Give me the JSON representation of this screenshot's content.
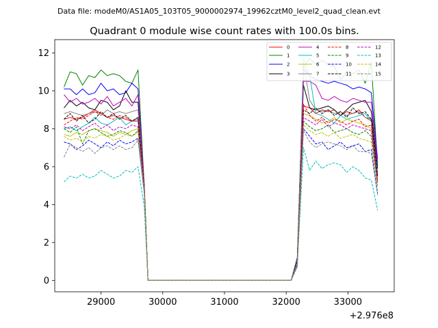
{
  "chart_data": {
    "type": "line",
    "suptitle": "Data file: modeM0/AS1A05_103T05_9000002974_19962cztM0_level2_quad_clean.evt",
    "title": "Quadrant 0 module wise count rates with 100.0s bins.",
    "xlabel": "",
    "ylabel": "",
    "x_offset_label": "+2.976e8",
    "xlim": [
      28250,
      33750
    ],
    "ylim": [
      -0.6,
      12.7
    ],
    "xticks": [
      29000,
      30000,
      31000,
      32000,
      33000
    ],
    "yticks": [
      0,
      2,
      4,
      6,
      8,
      10,
      12
    ],
    "xtick_labels": [
      "29000",
      "30000",
      "31000",
      "32000",
      "33000"
    ],
    "ytick_labels": [
      "0",
      "2",
      "4",
      "6",
      "8",
      "10",
      "12"
    ],
    "legend_position": "top-right",
    "segment1_x": [
      28400,
      28500,
      28600,
      28700,
      28800,
      28900,
      29000,
      29100,
      29200,
      29300,
      29400,
      29500,
      29600,
      29700,
      29760
    ],
    "gap_x": [
      29760,
      32080
    ],
    "segment2_x": [
      32080,
      32180,
      32280,
      32380,
      32480,
      32580,
      32680,
      32780,
      32880,
      32980,
      33080,
      33180,
      33280,
      33380,
      33480
    ],
    "series": [
      {
        "name": "0",
        "color": "#ff0000",
        "dash": false,
        "seg1": [
          8.5,
          8.6,
          8.5,
          8.6,
          8.8,
          9.0,
          8.8,
          8.6,
          8.7,
          8.6,
          8.5,
          8.4,
          8.4,
          5.0,
          0.0
        ],
        "seg2": [
          0.0,
          1.0,
          9.2,
          9.1,
          8.8,
          9.0,
          8.9,
          9.0,
          8.7,
          8.9,
          8.8,
          9.0,
          8.6,
          8.5,
          5.6
        ]
      },
      {
        "name": "1",
        "color": "#008000",
        "dash": false,
        "seg1": [
          10.2,
          11.0,
          10.9,
          10.3,
          10.8,
          10.7,
          11.1,
          10.8,
          10.9,
          10.8,
          10.5,
          10.4,
          11.1,
          5.0,
          0.0
        ],
        "seg2": [
          0.0,
          1.2,
          11.3,
          11.7,
          11.4,
          11.6,
          11.4,
          11.3,
          10.6,
          11.0,
          10.9,
          11.1,
          10.4,
          11.5,
          6.0
        ]
      },
      {
        "name": "2",
        "color": "#0000ff",
        "dash": false,
        "seg1": [
          10.1,
          10.1,
          9.8,
          10.1,
          9.8,
          9.9,
          10.4,
          10.0,
          10.1,
          9.8,
          9.9,
          10.4,
          10.1,
          5.0,
          0.0
        ],
        "seg2": [
          0.0,
          1.2,
          11.2,
          10.8,
          10.6,
          10.5,
          10.4,
          10.5,
          10.4,
          10.3,
          10.1,
          10.2,
          10.1,
          9.9,
          6.4
        ]
      },
      {
        "name": "3",
        "color": "#000000",
        "dash": false,
        "seg1": [
          9.1,
          9.5,
          9.2,
          9.4,
          9.1,
          9.0,
          9.5,
          9.4,
          9.0,
          9.2,
          10.0,
          9.4,
          9.4,
          5.0,
          0.0
        ],
        "seg2": [
          0.0,
          1.1,
          10.3,
          9.1,
          9.0,
          9.1,
          9.2,
          9.0,
          8.7,
          9.0,
          9.3,
          9.4,
          9.5,
          8.9,
          5.9
        ]
      },
      {
        "name": "4",
        "color": "#bf00bf",
        "dash": false,
        "seg1": [
          9.8,
          9.4,
          9.6,
          9.3,
          9.4,
          9.6,
          9.3,
          9.7,
          9.2,
          9.4,
          9.6,
          9.2,
          9.8,
          5.0,
          0.0
        ],
        "seg2": [
          0.0,
          1.1,
          10.5,
          10.5,
          10.3,
          9.6,
          9.5,
          9.7,
          9.5,
          9.4,
          9.6,
          9.5,
          9.4,
          9.4,
          6.2
        ]
      },
      {
        "name": "5",
        "color": "#00bfbf",
        "dash": false,
        "seg1": [
          8.0,
          8.1,
          7.9,
          8.1,
          8.3,
          8.6,
          8.3,
          8.2,
          8.4,
          8.6,
          8.2,
          8.4,
          8.5,
          4.9,
          0.0
        ],
        "seg2": [
          0.0,
          1.0,
          11.7,
          10.8,
          8.8,
          8.7,
          8.5,
          8.3,
          8.7,
          8.5,
          8.6,
          8.7,
          8.8,
          8.4,
          5.7
        ]
      },
      {
        "name": "6",
        "color": "#bfbf00",
        "dash": false,
        "seg1": [
          7.7,
          7.6,
          7.8,
          7.7,
          7.9,
          8.0,
          7.9,
          7.8,
          7.6,
          7.8,
          7.7,
          7.9,
          8.0,
          4.8,
          0.0
        ],
        "seg2": [
          0.0,
          0.9,
          8.8,
          8.7,
          8.5,
          8.3,
          8.4,
          8.6,
          8.3,
          8.5,
          8.4,
          8.3,
          8.2,
          8.0,
          5.3
        ]
      },
      {
        "name": "7",
        "color": "#808080",
        "dash": false,
        "seg1": [
          8.8,
          8.9,
          8.8,
          8.7,
          8.8,
          8.9,
          8.7,
          9.0,
          8.8,
          8.9,
          8.8,
          8.9,
          9.0,
          5.0,
          0.0
        ],
        "seg2": [
          0.0,
          1.1,
          11.5,
          9.5,
          9.0,
          8.9,
          9.0,
          8.8,
          8.9,
          8.7,
          8.8,
          8.9,
          8.6,
          8.4,
          5.5
        ]
      },
      {
        "name": "8",
        "color": "#ff0000",
        "dash": true,
        "seg1": [
          8.2,
          8.4,
          8.6,
          8.5,
          8.7,
          8.9,
          8.8,
          8.6,
          8.5,
          8.7,
          8.6,
          8.4,
          8.6,
          4.9,
          0.0
        ],
        "seg2": [
          0.0,
          1.0,
          9.3,
          8.7,
          8.4,
          8.6,
          8.3,
          8.5,
          8.4,
          8.2,
          8.4,
          8.5,
          8.1,
          8.2,
          5.2
        ]
      },
      {
        "name": "9",
        "color": "#008000",
        "dash": true,
        "seg1": [
          8.0,
          7.8,
          8.1,
          7.2,
          7.9,
          8.0,
          7.8,
          7.6,
          7.7,
          7.9,
          7.8,
          7.6,
          7.9,
          4.8,
          0.0
        ],
        "seg2": [
          0.0,
          0.9,
          8.4,
          8.1,
          7.9,
          8.0,
          8.2,
          7.8,
          7.9,
          8.0,
          7.8,
          7.7,
          7.9,
          7.6,
          5.0
        ]
      },
      {
        "name": "10",
        "color": "#0000ff",
        "dash": true,
        "seg1": [
          7.3,
          7.2,
          6.9,
          7.1,
          7.4,
          7.2,
          7.0,
          7.3,
          7.1,
          7.4,
          7.2,
          7.3,
          7.5,
          4.6,
          0.0
        ],
        "seg2": [
          0.0,
          0.8,
          8.0,
          7.6,
          7.2,
          7.3,
          6.9,
          7.1,
          7.3,
          7.0,
          7.1,
          7.2,
          6.8,
          6.9,
          4.6
        ]
      },
      {
        "name": "11",
        "color": "#000000",
        "dash": true,
        "seg1": [
          8.5,
          8.8,
          8.4,
          8.7,
          8.3,
          8.5,
          8.9,
          8.6,
          8.8,
          8.5,
          8.7,
          8.4,
          8.6,
          4.9,
          0.0
        ],
        "seg2": [
          0.0,
          1.0,
          9.0,
          8.8,
          9.1,
          8.8,
          9.0,
          8.7,
          8.9,
          8.6,
          9.1,
          8.8,
          8.9,
          8.5,
          5.5
        ]
      },
      {
        "name": "12",
        "color": "#bf00bf",
        "dash": true,
        "seg1": [
          8.1,
          8.0,
          8.2,
          7.9,
          8.1,
          8.3,
          8.0,
          8.2,
          7.9,
          8.1,
          8.0,
          8.2,
          8.1,
          4.8,
          0.0
        ],
        "seg2": [
          0.0,
          0.9,
          8.6,
          8.4,
          8.2,
          8.5,
          8.1,
          8.3,
          8.2,
          8.0,
          8.2,
          8.1,
          8.0,
          7.9,
          5.2
        ]
      },
      {
        "name": "13",
        "color": "#00bfbf",
        "dash": true,
        "seg1": [
          5.2,
          5.5,
          5.4,
          5.6,
          5.4,
          5.5,
          5.8,
          5.6,
          5.4,
          5.5,
          5.8,
          5.7,
          6.0,
          3.9,
          0.0
        ],
        "seg2": [
          0.0,
          0.7,
          7.0,
          5.8,
          6.3,
          5.9,
          6.1,
          6.2,
          6.1,
          5.7,
          6.0,
          5.8,
          5.4,
          5.3,
          3.7
        ]
      },
      {
        "name": "14",
        "color": "#bfbf00",
        "dash": true,
        "seg1": [
          7.6,
          7.4,
          7.5,
          7.3,
          7.6,
          7.5,
          7.7,
          7.6,
          7.4,
          7.5,
          7.7,
          7.6,
          7.8,
          4.7,
          0.0
        ],
        "seg2": [
          0.0,
          0.9,
          8.2,
          7.9,
          7.7,
          7.8,
          7.6,
          7.8,
          7.5,
          7.6,
          7.7,
          7.5,
          7.4,
          7.3,
          4.9
        ]
      },
      {
        "name": "15",
        "color": "#808080",
        "dash": true,
        "seg1": [
          6.5,
          7.2,
          7.0,
          6.8,
          7.0,
          6.7,
          7.0,
          7.1,
          6.9,
          7.1,
          6.9,
          7.0,
          7.4,
          4.6,
          0.0
        ],
        "seg2": [
          0.0,
          0.8,
          7.9,
          7.3,
          7.0,
          7.2,
          7.3,
          7.2,
          7.1,
          6.9,
          7.1,
          6.8,
          6.8,
          6.7,
          4.5
        ]
      }
    ]
  }
}
